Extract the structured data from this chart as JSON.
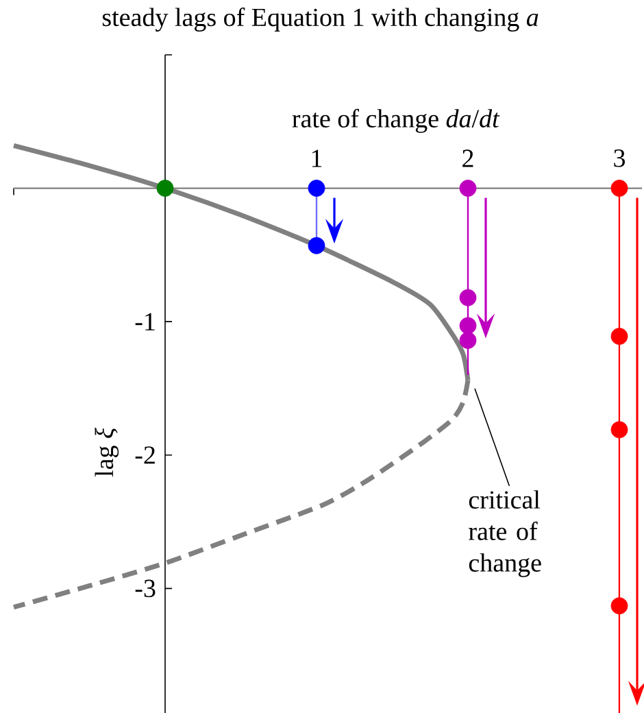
{
  "chart_data": {
    "type": "line",
    "title": "steady lags of Equation 1 with changing *a*",
    "xlabel": "rate of change *da*/*dt*",
    "ylabel": "lag *ξ*",
    "xlim": [
      -1,
      3.15
    ],
    "ylim": [
      -3.95,
      1
    ],
    "xticks": [
      {
        "value": -1,
        "label": null
      },
      1,
      2,
      3
    ],
    "yticks": [
      -3,
      -2,
      -1,
      {
        "value": 1,
        "label": null
      }
    ],
    "annotations": [
      {
        "text": "critical rate of change",
        "x": 2.0,
        "y": -1.44
      }
    ],
    "series": [
      {
        "color": "#808080",
        "line_style": "solid",
        "x": [
          -1,
          -0.5,
          0,
          0.5,
          1,
          1.5,
          1.75,
          1.9,
          1.97,
          2.0
        ],
        "values": [
          0.32,
          0.17,
          0,
          -0.2,
          -0.43,
          -0.7,
          -0.87,
          -1.1,
          -1.25,
          -1.44
        ]
      },
      {
        "color": "#808080",
        "line_style": "dashed",
        "x": [
          2.0,
          1.97,
          1.9,
          1.71,
          1.35,
          1.05,
          0.53,
          0,
          -0.5,
          -1
        ],
        "values": [
          -1.44,
          -1.6,
          -1.73,
          -1.9,
          -2.18,
          -2.37,
          -2.59,
          -2.81,
          -2.98,
          -3.14
        ]
      },
      {
        "color": "#7070ff",
        "x": [
          1,
          1
        ],
        "values": [
          0,
          -0.43
        ]
      },
      {
        "color": "#bf00bf",
        "x": [
          2,
          2
        ],
        "values": [
          0,
          -1.4
        ]
      },
      {
        "color": "#ff0000",
        "x": [
          3,
          3
        ],
        "values": [
          0,
          -3.95
        ]
      },
      {
        "type": "scatter",
        "color": "#008000",
        "marker": "circle",
        "x": [
          0
        ],
        "values": [
          0
        ]
      },
      {
        "type": "scatter",
        "color": "#0000ff",
        "marker": "circle",
        "x": [
          1,
          1
        ],
        "values": [
          0,
          -0.43
        ]
      },
      {
        "type": "scatter",
        "color": "#bf00bf",
        "marker": "circle",
        "x": [
          2,
          2,
          2,
          2
        ],
        "values": [
          0,
          -0.82,
          -1.03,
          -1.14
        ]
      },
      {
        "type": "scatter",
        "color": "#ff0000",
        "marker": "circle",
        "x": [
          3,
          3,
          3,
          3
        ],
        "values": [
          0,
          -1.11,
          -1.81,
          -3.13
        ]
      }
    ]
  }
}
